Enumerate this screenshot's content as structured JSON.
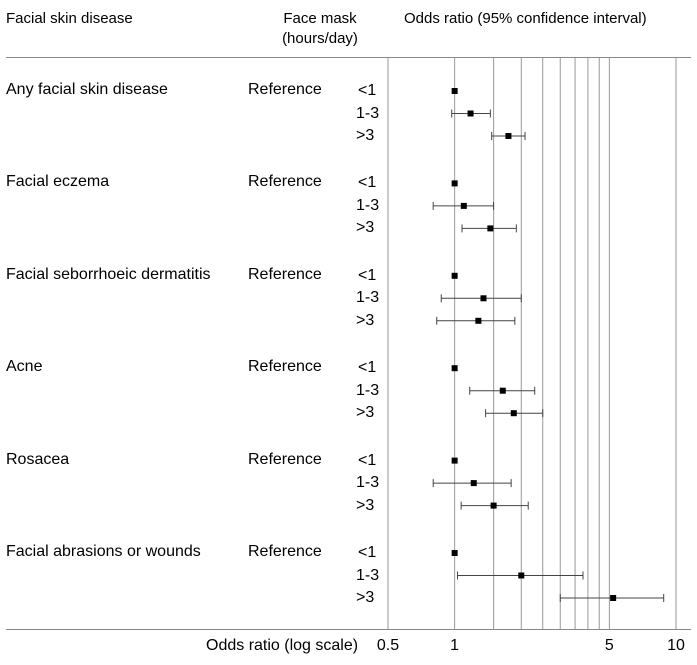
{
  "headers": {
    "disease": "Facial skin disease",
    "mask_line1": "Face mask",
    "mask_line2": "(hours/day)",
    "odds_ratio": "Odds ratio (95% confidence interval)"
  },
  "x_axis_title": "Odds ratio (log scale)",
  "colors": {
    "marker": "#000000",
    "ci": "#444444",
    "grid": "#999999"
  },
  "chart_data": {
    "type": "forest",
    "xscale": "log",
    "xlim": [
      0.5,
      10
    ],
    "xticks": [
      "0.5",
      "1",
      "5",
      "10"
    ],
    "gridlines": [
      0.5,
      1,
      1.5,
      2,
      2.5,
      3,
      3.5,
      4,
      4.5,
      5,
      10
    ],
    "groups": [
      {
        "name": "Any facial skin disease",
        "reference": "Reference",
        "rows": [
          {
            "category": "<1",
            "or": 1.0,
            "ci": null
          },
          {
            "category": "1-3",
            "or": 1.18,
            "ci": [
              0.97,
              1.45
            ]
          },
          {
            "category": ">3",
            "or": 1.75,
            "ci": [
              1.47,
              2.08
            ]
          }
        ]
      },
      {
        "name": "Facial eczema",
        "reference": "Reference",
        "rows": [
          {
            "category": "<1",
            "or": 1.0,
            "ci": null
          },
          {
            "category": "1-3",
            "or": 1.1,
            "ci": [
              0.8,
              1.5
            ]
          },
          {
            "category": ">3",
            "or": 1.45,
            "ci": [
              1.08,
              1.9
            ]
          }
        ]
      },
      {
        "name": "Facial seborrhoeic dermatitis",
        "reference": "Reference",
        "rows": [
          {
            "category": "<1",
            "or": 1.0,
            "ci": null
          },
          {
            "category": "1-3",
            "or": 1.35,
            "ci": [
              0.87,
              2.0
            ]
          },
          {
            "category": ">3",
            "or": 1.28,
            "ci": [
              0.83,
              1.87
            ]
          }
        ]
      },
      {
        "name": "Acne",
        "reference": "Reference",
        "rows": [
          {
            "category": "<1",
            "or": 1.0,
            "ci": null
          },
          {
            "category": "1-3",
            "or": 1.65,
            "ci": [
              1.17,
              2.3
            ]
          },
          {
            "category": ">3",
            "or": 1.85,
            "ci": [
              1.38,
              2.5
            ]
          }
        ]
      },
      {
        "name": "Rosacea",
        "reference": "Reference",
        "rows": [
          {
            "category": "<1",
            "or": 1.0,
            "ci": null
          },
          {
            "category": "1-3",
            "or": 1.22,
            "ci": [
              0.8,
              1.8
            ]
          },
          {
            "category": ">3",
            "or": 1.5,
            "ci": [
              1.07,
              2.15
            ]
          }
        ]
      },
      {
        "name": "Facial abrasions or wounds",
        "reference": "Reference",
        "rows": [
          {
            "category": "<1",
            "or": 1.0,
            "ci": null
          },
          {
            "category": "1-3",
            "or": 2.0,
            "ci": [
              1.03,
              3.8
            ]
          },
          {
            "category": ">3",
            "or": 5.2,
            "ci": [
              3.0,
              8.8
            ]
          }
        ]
      }
    ]
  }
}
